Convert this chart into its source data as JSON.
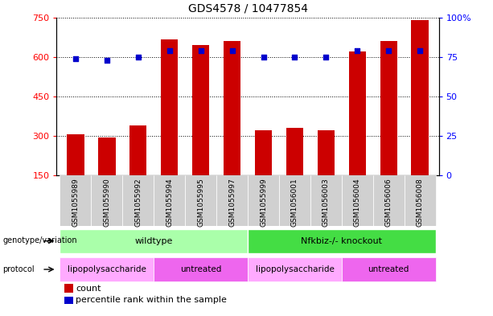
{
  "title": "GDS4578 / 10477854",
  "samples": [
    "GSM1055989",
    "GSM1055990",
    "GSM1055992",
    "GSM1055994",
    "GSM1055995",
    "GSM1055997",
    "GSM1055999",
    "GSM1056001",
    "GSM1056003",
    "GSM1056004",
    "GSM1056006",
    "GSM1056008"
  ],
  "counts": [
    305,
    295,
    340,
    665,
    645,
    660,
    320,
    330,
    320,
    620,
    660,
    740
  ],
  "percentile_ranks": [
    74,
    73,
    75,
    79,
    79,
    79,
    75,
    75,
    75,
    79,
    79,
    79
  ],
  "ylim_left": [
    150,
    750
  ],
  "ylim_right": [
    0,
    100
  ],
  "yticks_left": [
    150,
    300,
    450,
    600,
    750
  ],
  "yticks_right": [
    0,
    25,
    50,
    75,
    100
  ],
  "bar_color": "#cc0000",
  "dot_color": "#0000cc",
  "genotype_groups": [
    {
      "label": "wildtype",
      "start": 0,
      "end": 5,
      "color": "#aaffaa"
    },
    {
      "label": "Nfkbiz-/- knockout",
      "start": 6,
      "end": 11,
      "color": "#44dd44"
    }
  ],
  "protocol_groups": [
    {
      "label": "lipopolysaccharide",
      "start": 0,
      "end": 2,
      "color": "#ffaaff"
    },
    {
      "label": "untreated",
      "start": 3,
      "end": 5,
      "color": "#ee66ee"
    },
    {
      "label": "lipopolysaccharide",
      "start": 6,
      "end": 8,
      "color": "#ffaaff"
    },
    {
      "label": "untreated",
      "start": 9,
      "end": 11,
      "color": "#ee66ee"
    }
  ],
  "legend_count_color": "#cc0000",
  "legend_dot_color": "#0000cc",
  "bar_width": 0.55,
  "grid_linestyle": ":"
}
